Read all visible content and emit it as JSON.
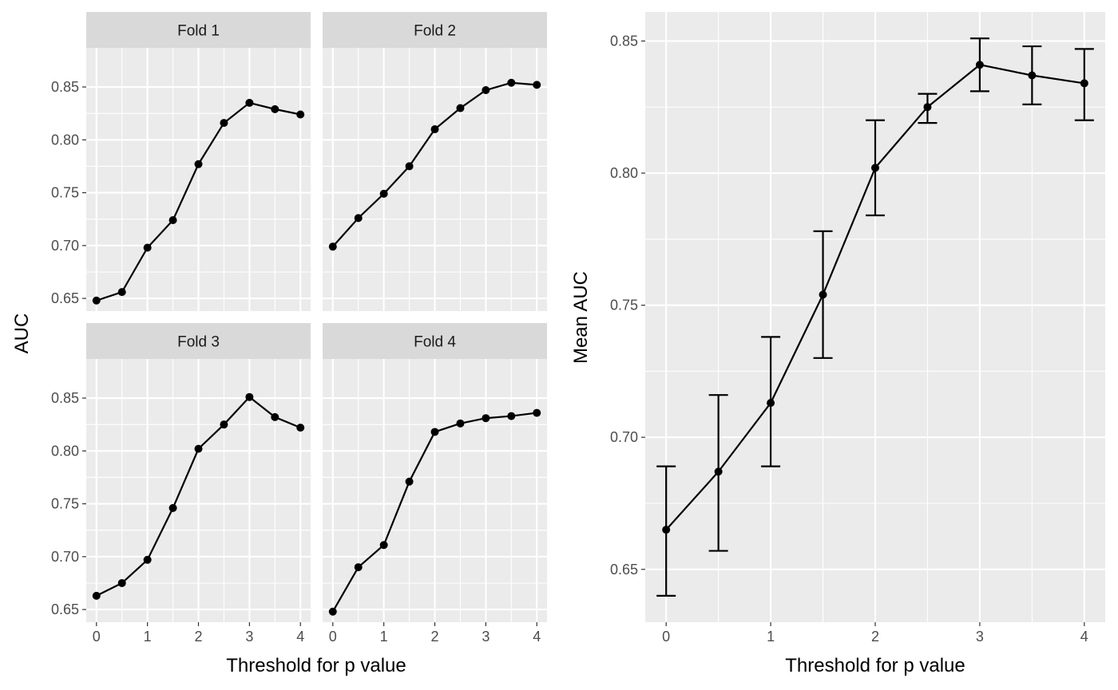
{
  "chart_data": [
    {
      "type": "line",
      "layout": "facet",
      "xlabel": "Threshold for p value",
      "ylabel": "AUC",
      "xlim": [
        -0.2,
        4.2
      ],
      "ylim": [
        0.638,
        0.887
      ],
      "x_ticks": [
        0,
        1,
        2,
        3,
        4
      ],
      "y_ticks": [
        0.65,
        0.7,
        0.75,
        0.8,
        0.85
      ],
      "x_tick_labels": [
        "0",
        "1",
        "2",
        "3",
        "4"
      ],
      "y_tick_labels": [
        "0.65",
        "0.70",
        "0.75",
        "0.80",
        "0.85"
      ],
      "x": [
        0,
        0.5,
        1,
        1.5,
        2,
        2.5,
        3,
        3.5,
        4
      ],
      "facets": [
        {
          "label": "Fold 1",
          "values": [
            0.648,
            0.656,
            0.698,
            0.724,
            0.777,
            0.816,
            0.835,
            0.829,
            0.824
          ]
        },
        {
          "label": "Fold 2",
          "values": [
            0.699,
            0.726,
            0.749,
            0.775,
            0.81,
            0.83,
            0.847,
            0.854,
            0.852
          ]
        },
        {
          "label": "Fold 3",
          "values": [
            0.663,
            0.675,
            0.697,
            0.746,
            0.802,
            0.825,
            0.851,
            0.832,
            0.822
          ]
        },
        {
          "label": "Fold 4",
          "values": [
            0.648,
            0.69,
            0.711,
            0.771,
            0.818,
            0.826,
            0.831,
            0.833,
            0.836
          ]
        }
      ],
      "grid": true
    },
    {
      "type": "line",
      "error_bars": true,
      "xlabel": "Threshold for p value",
      "ylabel": "Mean AUC",
      "xlim": [
        -0.2,
        4.2
      ],
      "ylim": [
        0.63,
        0.861
      ],
      "x_ticks": [
        0,
        1,
        2,
        3,
        4
      ],
      "y_ticks": [
        0.65,
        0.7,
        0.75,
        0.8,
        0.85
      ],
      "x_tick_labels": [
        "0",
        "1",
        "2",
        "3",
        "4"
      ],
      "y_tick_labels": [
        "0.65",
        "0.70",
        "0.75",
        "0.80",
        "0.85"
      ],
      "x": [
        0,
        0.5,
        1,
        1.5,
        2,
        2.5,
        3,
        3.5,
        4
      ],
      "values": [
        0.665,
        0.687,
        0.713,
        0.754,
        0.802,
        0.825,
        0.841,
        0.837,
        0.834
      ],
      "lower": [
        0.64,
        0.657,
        0.689,
        0.73,
        0.784,
        0.819,
        0.831,
        0.826,
        0.82
      ],
      "upper": [
        0.689,
        0.716,
        0.738,
        0.778,
        0.82,
        0.83,
        0.851,
        0.848,
        0.847
      ],
      "grid": true
    }
  ]
}
